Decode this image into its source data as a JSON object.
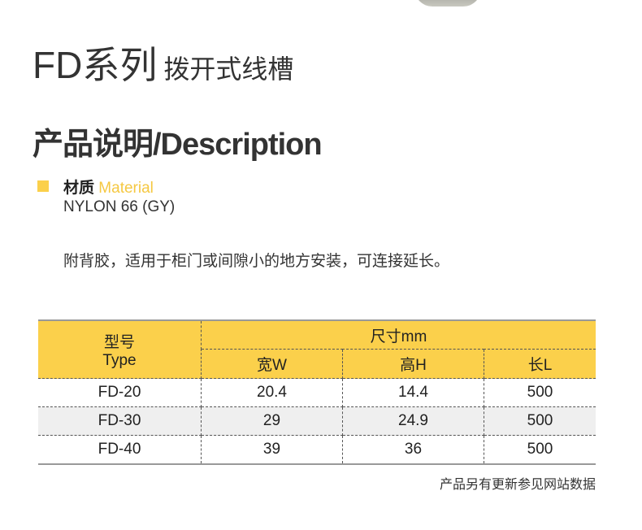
{
  "title": {
    "main": "FD系列",
    "sub": "拨开式线槽"
  },
  "section": {
    "heading": "产品说明/Description"
  },
  "material": {
    "label_cn": "材质",
    "label_en": "Material",
    "value": "NYLON 66 (GY)"
  },
  "description": "附背胶，适用于柜门或间隙小的地方安装，可连接延长。",
  "table": {
    "type_header_cn": "型号",
    "type_header_en": "Type",
    "dims_header": "尺寸mm",
    "columns": [
      "宽W",
      "高H",
      "长L"
    ],
    "rows": [
      [
        "FD-20",
        "20.4",
        "14.4",
        "500"
      ],
      [
        "FD-30",
        "29",
        "24.9",
        "500"
      ],
      [
        "FD-40",
        "39",
        "36",
        "500"
      ]
    ]
  },
  "footnote": "产品另有更新参见网站数据",
  "colors": {
    "accent": "#fbd04b",
    "alt_row": "#efefef"
  }
}
